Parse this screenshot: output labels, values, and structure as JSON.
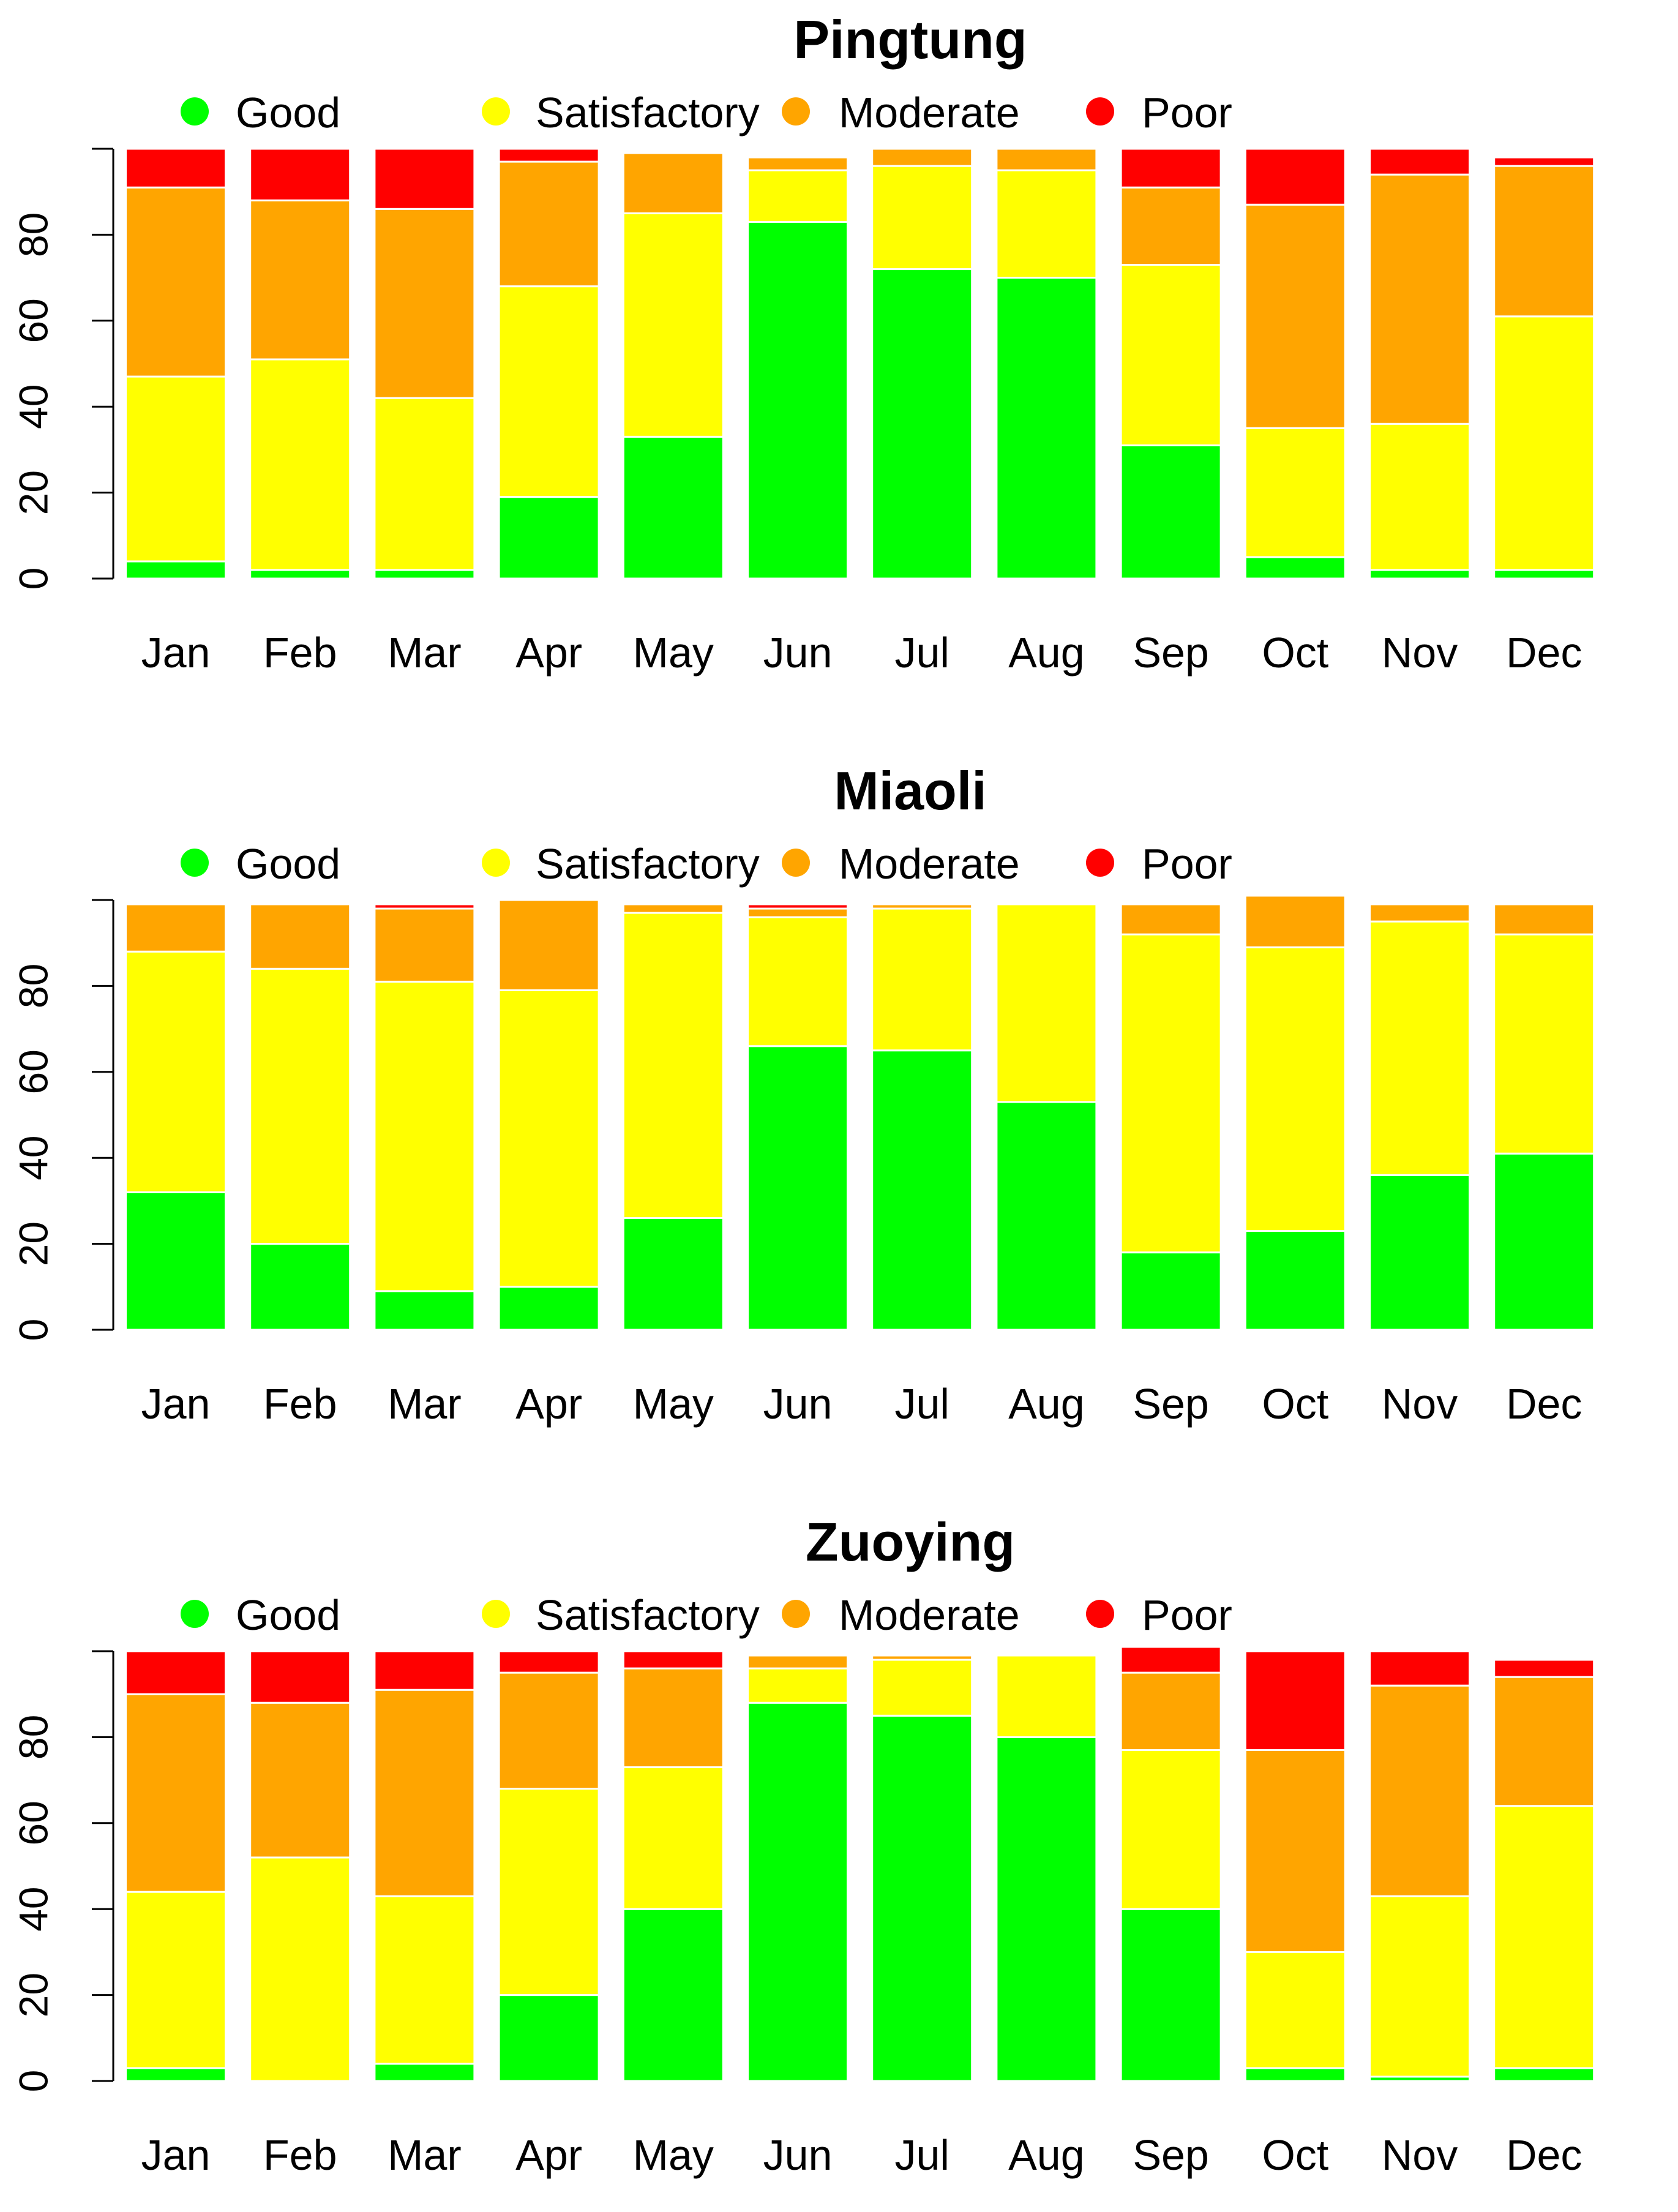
{
  "colors": {
    "Good": "#00ff00",
    "Satisfactory": "#ffff00",
    "Moderate": "#ffa500",
    "Poor": "#ff0000",
    "separator": "#ffffff"
  },
  "chart_data": [
    {
      "type": "bar",
      "stacked": true,
      "title": "Pingtung",
      "categories": [
        "Jan",
        "Feb",
        "Mar",
        "Apr",
        "May",
        "Jun",
        "Jul",
        "Aug",
        "Sep",
        "Oct",
        "Nov",
        "Dec"
      ],
      "legend": [
        "Good",
        "Satisfactory",
        "Moderate",
        "Poor"
      ],
      "yticks": [
        "0",
        "20",
        "40",
        "60",
        "80"
      ],
      "ylim": [
        0,
        100
      ],
      "series": [
        {
          "name": "Good",
          "values": [
            4,
            2,
            2,
            19,
            33,
            83,
            72,
            70,
            31,
            5,
            2,
            2
          ]
        },
        {
          "name": "Satisfactory",
          "values": [
            43,
            49,
            40,
            49,
            52,
            12,
            24,
            25,
            42,
            30,
            34,
            59
          ]
        },
        {
          "name": "Moderate",
          "values": [
            44,
            37,
            44,
            29,
            14,
            3,
            4,
            5,
            18,
            52,
            58,
            35
          ]
        },
        {
          "name": "Poor",
          "values": [
            9,
            12,
            14,
            3,
            0,
            0,
            0,
            0,
            9,
            13,
            6,
            2
          ]
        }
      ]
    },
    {
      "type": "bar",
      "stacked": true,
      "title": "Miaoli",
      "categories": [
        "Jan",
        "Feb",
        "Mar",
        "Apr",
        "May",
        "Jun",
        "Jul",
        "Aug",
        "Sep",
        "Oct",
        "Nov",
        "Dec"
      ],
      "legend": [
        "Good",
        "Satisfactory",
        "Moderate",
        "Poor"
      ],
      "yticks": [
        "0",
        "20",
        "40",
        "60",
        "80"
      ],
      "ylim": [
        0,
        100
      ],
      "series": [
        {
          "name": "Good",
          "values": [
            32,
            20,
            9,
            10,
            26,
            66,
            65,
            53,
            18,
            23,
            36,
            41
          ]
        },
        {
          "name": "Satisfactory",
          "values": [
            56,
            64,
            72,
            69,
            71,
            30,
            33,
            46,
            74,
            66,
            59,
            51
          ]
        },
        {
          "name": "Moderate",
          "values": [
            11,
            15,
            17,
            21,
            2,
            2,
            1,
            0,
            7,
            12,
            4,
            7
          ]
        },
        {
          "name": "Poor",
          "values": [
            0,
            0,
            1,
            0,
            0,
            1,
            0,
            0,
            0,
            0,
            0,
            0
          ]
        }
      ]
    },
    {
      "type": "bar",
      "stacked": true,
      "title": "Zuoying",
      "categories": [
        "Jan",
        "Feb",
        "Mar",
        "Apr",
        "May",
        "Jun",
        "Jul",
        "Aug",
        "Sep",
        "Oct",
        "Nov",
        "Dec"
      ],
      "legend": [
        "Good",
        "Satisfactory",
        "Moderate",
        "Poor"
      ],
      "yticks": [
        "0",
        "20",
        "40",
        "60",
        "80"
      ],
      "ylim": [
        0,
        100
      ],
      "series": [
        {
          "name": "Good",
          "values": [
            3,
            0,
            4,
            20,
            40,
            88,
            85,
            80,
            40,
            3,
            1,
            3
          ]
        },
        {
          "name": "Satisfactory",
          "values": [
            41,
            52,
            39,
            48,
            33,
            8,
            13,
            19,
            37,
            27,
            42,
            61
          ]
        },
        {
          "name": "Moderate",
          "values": [
            46,
            36,
            48,
            27,
            23,
            3,
            1,
            0,
            18,
            47,
            49,
            30
          ]
        },
        {
          "name": "Poor",
          "values": [
            10,
            12,
            9,
            5,
            4,
            0,
            0,
            0,
            6,
            23,
            8,
            4
          ]
        }
      ]
    }
  ]
}
